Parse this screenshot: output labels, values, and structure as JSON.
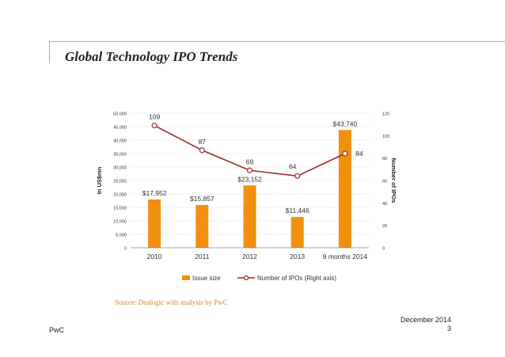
{
  "slide": {
    "title": "Global Technology IPO Trends",
    "source": "Source: Dealogic with analysis by PwC",
    "footer_left": "PwC",
    "footer_date": "December 2014",
    "page_number": "3"
  },
  "chart_data": {
    "type": "bar",
    "title": "",
    "categories": [
      "2010",
      "2011",
      "2012",
      "2013",
      "9 months 2014"
    ],
    "series": [
      {
        "name": "Issue size",
        "type": "bar",
        "axis": "left",
        "color": "#f0900c",
        "values": [
          17952,
          15857,
          23152,
          11446,
          43740
        ],
        "labels": [
          "$17,952",
          "$15,857",
          "$23,152",
          "$11,446",
          "$43,740"
        ]
      },
      {
        "name": "Number of IPOs (Right axis)",
        "type": "line",
        "axis": "right",
        "color": "#a0282a",
        "values": [
          109,
          87,
          69,
          64,
          84
        ],
        "labels": [
          "109",
          "87",
          "69",
          "64",
          "84"
        ]
      }
    ],
    "ylabel": "In US$mn",
    "y2label": "Number of IPOs",
    "ylim": [
      0,
      50000
    ],
    "y2lim": [
      0,
      120
    ],
    "yticks": [
      "0",
      "5,000",
      "10,000",
      "15,000",
      "20,000",
      "25,000",
      "30,000",
      "35,000",
      "40,000",
      "45,000",
      "50,000"
    ],
    "y2ticks": [
      "0",
      "20",
      "40",
      "60",
      "80",
      "100",
      "120"
    ],
    "grid": true,
    "legend": "bottom"
  }
}
